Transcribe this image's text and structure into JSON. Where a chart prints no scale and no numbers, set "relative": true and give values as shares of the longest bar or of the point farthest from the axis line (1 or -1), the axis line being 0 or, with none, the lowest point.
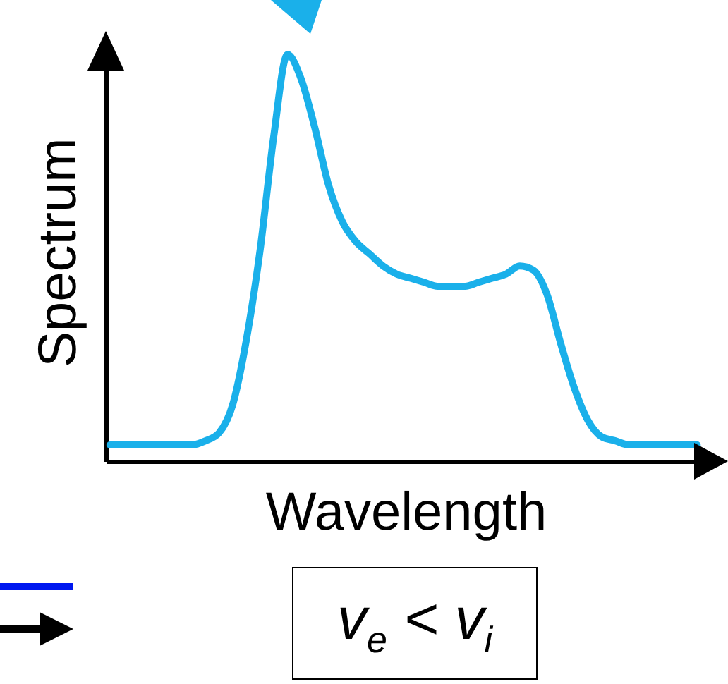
{
  "chart_data": {
    "type": "line",
    "relative": true,
    "xlabel": "Wavelength",
    "ylabel": "Spectrum",
    "annotations": [
      "v$_{e}$ < v$_{i}$"
    ],
    "categories": [
      null,
      null,
      null,
      null,
      null,
      null,
      null,
      null,
      null,
      null,
      null,
      null,
      null,
      null,
      null,
      null,
      null,
      null,
      null,
      null,
      null,
      null,
      null,
      null,
      null,
      null,
      null,
      null,
      null,
      null,
      null,
      null,
      null,
      null,
      null,
      null,
      null,
      null,
      null,
      null,
      null,
      null,
      null,
      null
    ],
    "series": [
      {
        "color": "#1ab0ea",
        "values": [
          0.04,
          0.04,
          0.04,
          0.04,
          0.04,
          0.04,
          0.04,
          0.05,
          0.07,
          0.14,
          0.3,
          0.52,
          0.8,
          1.0,
          0.94,
          0.82,
          0.68,
          0.59,
          0.54,
          0.51,
          0.48,
          0.46,
          0.45,
          0.44,
          0.43,
          0.43,
          0.43,
          0.44,
          0.45,
          0.46,
          0.48,
          0.47,
          0.41,
          0.29,
          0.18,
          0.1,
          0.06,
          0.05,
          0.04,
          0.04,
          0.04,
          0.04,
          0.04,
          0.04
        ]
      }
    ],
    "marker": "none",
    "line_style": "solid"
  }
}
